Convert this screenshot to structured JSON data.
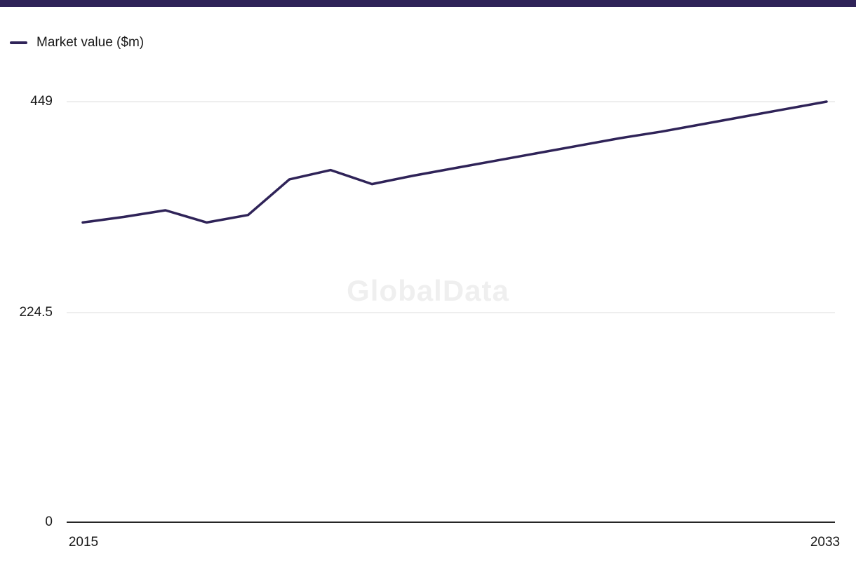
{
  "page": {
    "background": "#ffffff",
    "top_bar_color": "#2f2358"
  },
  "legend": {
    "label": "Market value ($m)",
    "color": "#2f2358"
  },
  "watermark": "GlobalData",
  "chart_data": {
    "type": "line",
    "title": "",
    "xlabel": "",
    "ylabel": "",
    "x": [
      2015,
      2016,
      2017,
      2018,
      2019,
      2020,
      2021,
      2022,
      2023,
      2024,
      2025,
      2026,
      2027,
      2028,
      2029,
      2030,
      2031,
      2032,
      2033
    ],
    "series": [
      {
        "name": "Market value ($m)",
        "color": "#2f2358",
        "values": [
          320,
          326,
          333,
          320,
          328,
          366,
          376,
          361,
          370,
          378,
          386,
          394,
          402,
          410,
          417,
          425,
          433,
          441,
          449
        ]
      }
    ],
    "ylim": [
      0,
      449
    ],
    "yticks": [
      449,
      224.5,
      0
    ],
    "ytick_labels": [
      "449",
      "224.5",
      "0"
    ],
    "xtick_labels": [
      "2015",
      "2033"
    ],
    "grid": "horizontal",
    "gridline_color": "#dcdcdc",
    "axis_color": "#262626",
    "legend_position": "top-left"
  }
}
